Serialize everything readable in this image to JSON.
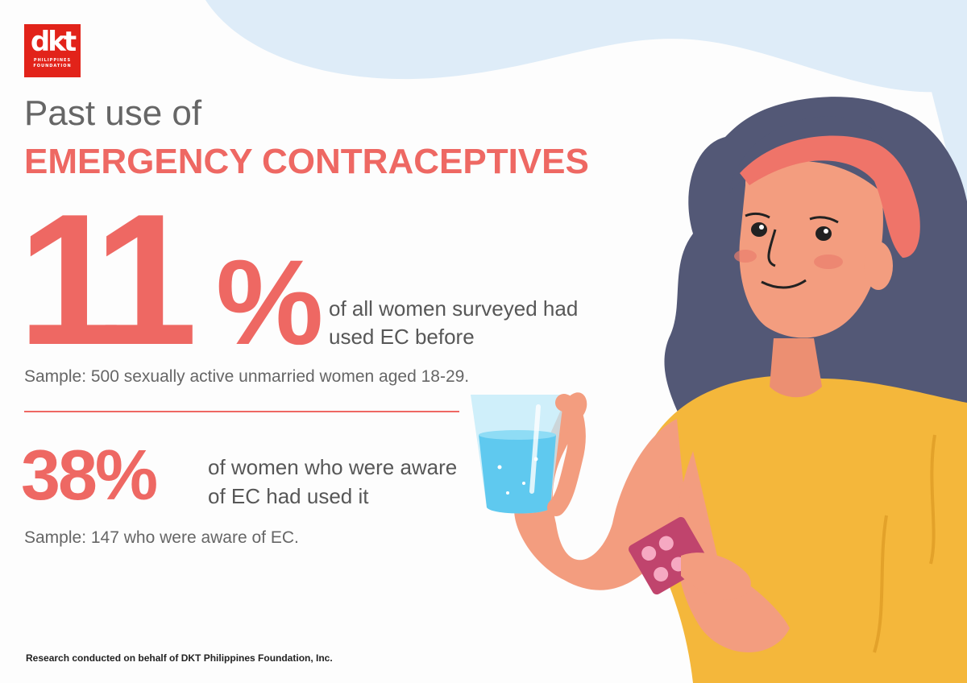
{
  "logo": {
    "text": "dkt",
    "sub1": "PHILIPPINES",
    "sub2": "FOUNDATION"
  },
  "title": {
    "line1": "Past use of",
    "line2": "EMERGENCY CONTRACEPTIVES"
  },
  "stat1": {
    "value": "11",
    "unit": "%",
    "description": "of all women surveyed had used EC before",
    "sample": "Sample: 500 sexually active unmarried women aged 18-29."
  },
  "stat2": {
    "value": "38%",
    "description": "of women who were aware of EC had used it",
    "sample": "Sample: 147 who were aware of EC."
  },
  "footer": {
    "note": "Research conducted on behalf of DKT Philippines Foundation, Inc."
  },
  "colors": {
    "accent": "#ee6863",
    "text_gray": "#666666",
    "logo_red": "#e2231a",
    "shirt": "#f4b73b",
    "hair": "#535876",
    "skin": "#f39d7f",
    "background_blob": "#dcebf7",
    "water": "#5fc9ef"
  },
  "icons": [
    "woman-illustration",
    "water-glass-icon",
    "pill-pack-icon"
  ]
}
